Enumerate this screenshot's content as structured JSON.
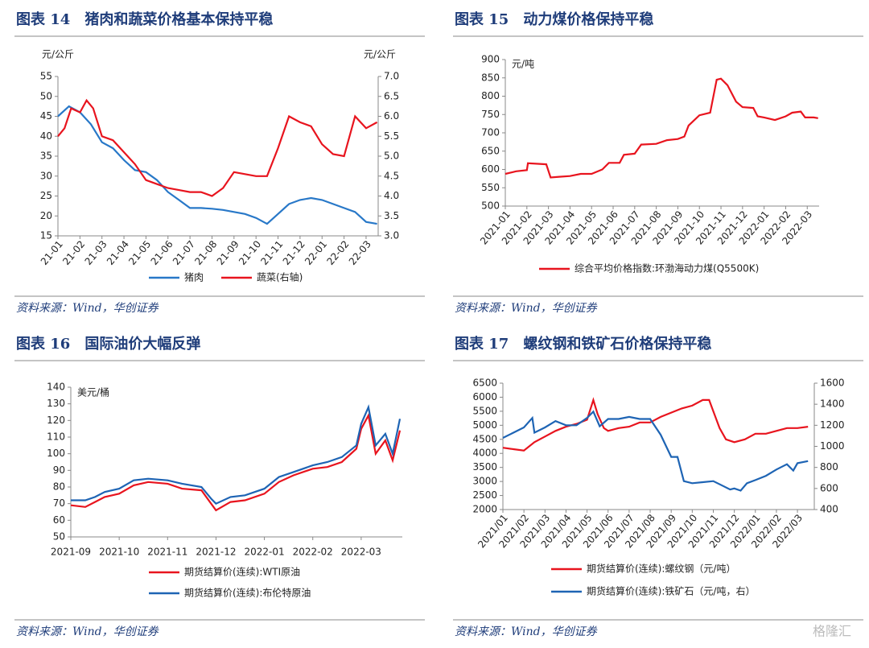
{
  "watermark": "格隆汇",
  "chart_data": [
    {
      "type": "line",
      "title": "图表 14　猪肉和蔬菜价格基本保持平稳",
      "source": "资料来源：Wind，华创证券",
      "y_label": "元/公斤",
      "y2_label": "元/公斤",
      "xlim": [
        0,
        14.55
      ],
      "xticks": [
        {
          "value": 0,
          "label": "21-01"
        },
        {
          "value": 1,
          "label": "21-02"
        },
        {
          "value": 2,
          "label": "21-03"
        },
        {
          "value": 3,
          "label": "21-04"
        },
        {
          "value": 4,
          "label": "21-05"
        },
        {
          "value": 5,
          "label": "21-06"
        },
        {
          "value": 6,
          "label": "21-07"
        },
        {
          "value": 7,
          "label": "21-08"
        },
        {
          "value": 8,
          "label": "21-09"
        },
        {
          "value": 9,
          "label": "21-10"
        },
        {
          "value": 10,
          "label": "21-11"
        },
        {
          "value": 11,
          "label": "21-12"
        },
        {
          "value": 12,
          "label": "22-01"
        },
        {
          "value": 13,
          "label": "22-02"
        },
        {
          "value": 14,
          "label": "22-03"
        }
      ],
      "ylim": [
        15,
        55
      ],
      "yticks": [
        15,
        20,
        25,
        30,
        35,
        40,
        45,
        50,
        55
      ],
      "y2lim": [
        3,
        7
      ],
      "y2ticks": [
        {
          "value": 3,
          "label": "3.0"
        },
        3.5,
        {
          "value": 4,
          "label": "4.0"
        },
        4.5,
        {
          "value": 5,
          "label": "5.0"
        },
        5.5,
        {
          "value": 6,
          "label": "6.0"
        },
        6.5,
        {
          "value": 7,
          "label": "7.0"
        }
      ],
      "series": [
        {
          "name": "猪肉",
          "color": "#2878c8",
          "x": [
            0,
            0.5,
            1,
            1.5,
            2,
            2.5,
            3,
            3.5,
            4,
            4.5,
            5,
            5.5,
            6,
            6.5,
            7,
            7.5,
            8,
            8.5,
            9,
            9.5,
            10,
            10.5,
            11,
            11.5,
            12,
            12.5,
            13,
            13.5,
            14,
            14.5
          ],
          "values": [
            45,
            47.5,
            46,
            43,
            38.5,
            37,
            34,
            31.5,
            31,
            29,
            26,
            24,
            22,
            22,
            21.8,
            21.5,
            21,
            20.5,
            19.5,
            18,
            20.5,
            23,
            24,
            24.5,
            24,
            23,
            22,
            21,
            18.5,
            18
          ]
        },
        {
          "name": "蔬菜(右轴)",
          "color": "#e8141e",
          "axis": "y2",
          "x": [
            0,
            0.3,
            0.6,
            1,
            1.3,
            1.6,
            2,
            2.5,
            3,
            3.5,
            4,
            4.5,
            5,
            5.5,
            6,
            6.5,
            7,
            7.5,
            8,
            8.5,
            9,
            9.5,
            10,
            10.5,
            11,
            11.5,
            12,
            12.5,
            13,
            13.5,
            14,
            14.5
          ],
          "values": [
            5.5,
            5.7,
            6.2,
            6.1,
            6.4,
            6.2,
            5.5,
            5.4,
            5.1,
            4.8,
            4.4,
            4.3,
            4.2,
            4.15,
            4.1,
            4.1,
            4.0,
            4.2,
            4.6,
            4.55,
            4.5,
            4.5,
            5.2,
            6.0,
            5.85,
            5.75,
            5.3,
            5.05,
            5.0,
            6.0,
            5.7,
            5.85
          ]
        }
      ]
    },
    {
      "type": "line",
      "title": "图表 15　动力煤价格保持平稳",
      "source": "资料来源：Wind，华创证券",
      "y_label": "元/吨",
      "xlim": [
        0,
        14.55
      ],
      "xticks": [
        {
          "value": 0,
          "label": "2021-01"
        },
        {
          "value": 1,
          "label": "2021-02"
        },
        {
          "value": 2,
          "label": "2021-03"
        },
        {
          "value": 3,
          "label": "2021-04"
        },
        {
          "value": 4,
          "label": "2021-05"
        },
        {
          "value": 5,
          "label": "2021-06"
        },
        {
          "value": 6,
          "label": "2021-07"
        },
        {
          "value": 7,
          "label": "2021-08"
        },
        {
          "value": 8,
          "label": "2021-09"
        },
        {
          "value": 9,
          "label": "2021-10"
        },
        {
          "value": 10,
          "label": "2021-11"
        },
        {
          "value": 11,
          "label": "2021-12"
        },
        {
          "value": 12,
          "label": "2022-01"
        },
        {
          "value": 13,
          "label": "2022-02"
        },
        {
          "value": 14,
          "label": "2022-03"
        }
      ],
      "ylim": [
        500,
        900
      ],
      "yticks": [
        500,
        550,
        600,
        650,
        700,
        750,
        800,
        850,
        900
      ],
      "series": [
        {
          "name": "综合平均价格指数:环渤海动力煤(Q5500K)",
          "color": "#e8141e",
          "x": [
            0,
            0.5,
            1,
            1.05,
            1.9,
            2.1,
            2.5,
            3,
            3.5,
            4,
            4.5,
            4.8,
            5.3,
            5.5,
            6,
            6.3,
            7,
            7.5,
            8,
            8.3,
            8.5,
            9,
            9.5,
            9.8,
            10,
            10.3,
            10.7,
            11,
            11.5,
            11.7,
            12,
            12.5,
            13,
            13.3,
            13.7,
            13.9,
            14.3,
            14.5
          ],
          "values": [
            588,
            595,
            598,
            617,
            614,
            578,
            580,
            582,
            588,
            588,
            600,
            618,
            618,
            640,
            643,
            668,
            670,
            680,
            683,
            690,
            720,
            748,
            755,
            845,
            848,
            830,
            785,
            770,
            768,
            745,
            742,
            735,
            745,
            755,
            758,
            742,
            742,
            740
          ]
        }
      ]
    },
    {
      "type": "line",
      "title": "图表 16　国际油价大幅反弹",
      "source": "资料来源：Wind，华创证券",
      "y_label": "美元/桶",
      "xlim": [
        0,
        6.85
      ],
      "xticks": [
        {
          "value": 0,
          "label": "2021-09"
        },
        {
          "value": 1,
          "label": "2021-10"
        },
        {
          "value": 2,
          "label": "2021-11"
        },
        {
          "value": 3,
          "label": "2021-12"
        },
        {
          "value": 4,
          "label": "2022-01"
        },
        {
          "value": 5,
          "label": "2022-02"
        },
        {
          "value": 6,
          "label": "2022-03"
        }
      ],
      "ylim": [
        50,
        140
      ],
      "yticks": [
        50,
        60,
        70,
        80,
        90,
        100,
        110,
        120,
        130,
        140
      ],
      "series": [
        {
          "name": "期货结算价(连续):WTI原油",
          "color": "#e8141e",
          "x": [
            0,
            0.3,
            0.5,
            0.7,
            1,
            1.3,
            1.6,
            2,
            2.3,
            2.7,
            2.9,
            3,
            3.3,
            3.6,
            4,
            4.3,
            4.6,
            5,
            5.3,
            5.6,
            5.9,
            6,
            6.15,
            6.3,
            6.5,
            6.65,
            6.8
          ],
          "values": [
            69,
            68,
            71,
            74,
            76,
            81,
            83,
            82,
            79,
            78,
            70,
            66,
            71,
            72,
            76,
            83,
            87,
            91,
            92,
            95,
            103,
            115,
            123,
            100,
            108,
            96,
            114
          ]
        },
        {
          "name": "期货结算价(连续):布伦特原油",
          "color": "#1e64b4",
          "x": [
            0,
            0.3,
            0.5,
            0.7,
            1,
            1.3,
            1.6,
            2,
            2.3,
            2.7,
            2.9,
            3,
            3.3,
            3.6,
            4,
            4.3,
            4.6,
            5,
            5.3,
            5.6,
            5.9,
            6,
            6.15,
            6.3,
            6.5,
            6.65,
            6.8
          ],
          "values": [
            72,
            72,
            74,
            77,
            79,
            84,
            85,
            84,
            82,
            80,
            73,
            70,
            74,
            75,
            79,
            86,
            89,
            93,
            95,
            98,
            105,
            118,
            128,
            105,
            112,
            100,
            121
          ]
        }
      ]
    },
    {
      "type": "line",
      "title": "图表 17　螺纹钢和铁矿石价格保持平稳",
      "source": "资料来源：Wind，华创证券",
      "xlim": [
        0,
        14.8
      ],
      "xticks": [
        {
          "value": 0,
          "label": "2021/01"
        },
        {
          "value": 1,
          "label": "2021/02"
        },
        {
          "value": 2,
          "label": "2021/03"
        },
        {
          "value": 3,
          "label": "2021/04"
        },
        {
          "value": 4,
          "label": "2021/05"
        },
        {
          "value": 5,
          "label": "2021/06"
        },
        {
          "value": 6,
          "label": "2021/07"
        },
        {
          "value": 7,
          "label": "2021/08"
        },
        {
          "value": 8,
          "label": "2021/09"
        },
        {
          "value": 9,
          "label": "2021/10"
        },
        {
          "value": 10,
          "label": "2021/11"
        },
        {
          "value": 11,
          "label": "2021/12"
        },
        {
          "value": 12,
          "label": "2022/01"
        },
        {
          "value": 13,
          "label": "2022/02"
        },
        {
          "value": 14,
          "label": "2022/03"
        }
      ],
      "ylim": [
        2000,
        6500
      ],
      "yticks": [
        2000,
        2500,
        3000,
        3500,
        4000,
        4500,
        5000,
        5500,
        6000,
        6500
      ],
      "y2lim": [
        400,
        1600
      ],
      "y2ticks": [
        400,
        600,
        800,
        1000,
        1200,
        1400,
        1600
      ],
      "series": [
        {
          "name": "期货结算价(连续):螺纹钢（元/吨）",
          "color": "#e8141e",
          "x": [
            0,
            0.5,
            1,
            1.5,
            2,
            2.5,
            3,
            3.5,
            4,
            4.3,
            4.5,
            4.8,
            5,
            5.5,
            6,
            6.5,
            7,
            7.5,
            8,
            8.5,
            9,
            9.5,
            9.8,
            10,
            10.3,
            10.6,
            11,
            11.5,
            12,
            12.5,
            13,
            13.5,
            14,
            14.5
          ],
          "values": [
            4200,
            4150,
            4100,
            4400,
            4600,
            4800,
            4950,
            5050,
            5200,
            5900,
            5400,
            4900,
            4800,
            4900,
            4950,
            5100,
            5100,
            5300,
            5450,
            5600,
            5700,
            5900,
            5900,
            5500,
            4900,
            4500,
            4400,
            4500,
            4700,
            4700,
            4800,
            4900,
            4900,
            4950
          ]
        },
        {
          "name": "期货结算价(连续):铁矿石（元/吨，右）",
          "color": "#1e64b4",
          "axis": "y2",
          "x": [
            0,
            0.5,
            1,
            1.4,
            1.5,
            2,
            2.5,
            3,
            3.5,
            4,
            4.3,
            4.6,
            5,
            5.5,
            6,
            6.5,
            7,
            7.5,
            8,
            8.3,
            8.6,
            9,
            9.5,
            10,
            10.5,
            10.8,
            11,
            11.3,
            11.6,
            12,
            12.5,
            13,
            13.5,
            13.8,
            14,
            14.5
          ],
          "values": [
            1080,
            1130,
            1180,
            1270,
            1130,
            1180,
            1240,
            1200,
            1200,
            1270,
            1330,
            1190,
            1260,
            1260,
            1280,
            1260,
            1260,
            1110,
            900,
            900,
            670,
            650,
            660,
            670,
            620,
            590,
            600,
            580,
            650,
            680,
            720,
            780,
            830,
            770,
            840,
            860
          ]
        }
      ]
    }
  ]
}
